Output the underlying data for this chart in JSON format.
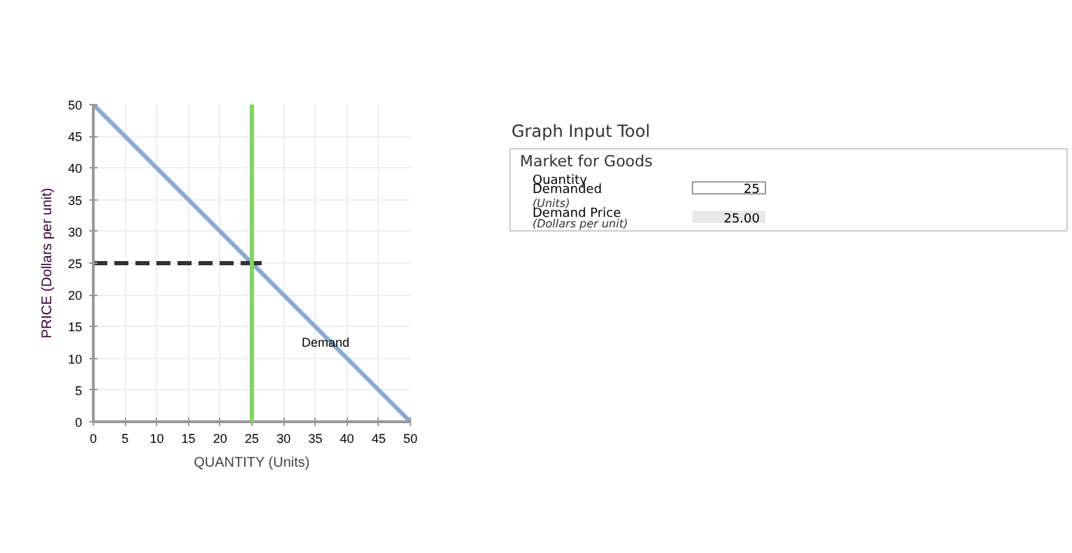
{
  "chart_data": {
    "type": "line",
    "xlabel": "QUANTITY (Units)",
    "ylabel": "PRICE (Dollars per unit)",
    "xlim": [
      0,
      50
    ],
    "ylim": [
      0,
      50
    ],
    "xticks": [
      0,
      5,
      10,
      15,
      20,
      25,
      30,
      35,
      40,
      45,
      50
    ],
    "yticks": [
      0,
      5,
      10,
      15,
      20,
      25,
      30,
      35,
      40,
      45,
      50
    ],
    "grid": true,
    "series": [
      {
        "name": "Demand",
        "color": "#88aad2",
        "x": [
          0,
          50
        ],
        "values": [
          50,
          0
        ],
        "line_style": "solid"
      },
      {
        "type": "line",
        "color": "#333333",
        "x": [
          0,
          25
        ],
        "values": [
          25,
          25
        ],
        "line_style": "dashed"
      },
      {
        "type": "scatter",
        "color": "#333333",
        "x": [
          25
        ],
        "values": [
          25
        ],
        "marker": "cross"
      }
    ],
    "ref_lines": [
      {
        "axis": "x",
        "value": 25,
        "color": "#7ed957"
      }
    ],
    "annotations": [
      "Graph Input Tool",
      "Market for Goods",
      "Quantity Demanded",
      "(Units)",
      "25",
      "Demand Price",
      "(Dollars per unit)",
      "25.00"
    ]
  }
}
